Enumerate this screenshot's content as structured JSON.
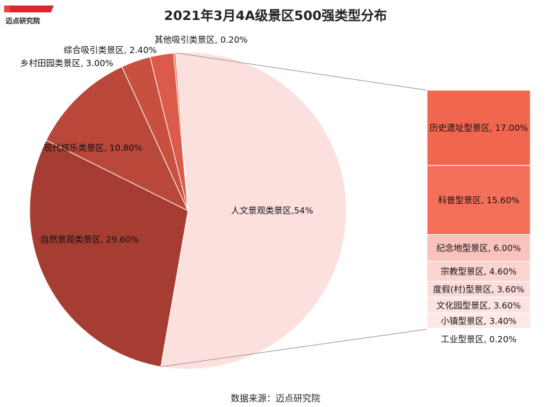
{
  "logo": {
    "text": "迈点研究院"
  },
  "source": "数据来源：迈点研究院",
  "chart_data": {
    "type": "pie",
    "title": "2021年3月4A级景区500强类型分布",
    "slices": [
      {
        "label": "人文景观类景区,54%",
        "value": 54,
        "color": "#fce0de"
      },
      {
        "label": "自然景观类景区, 29.60%",
        "value": 29.6,
        "color": "#a63d32"
      },
      {
        "label": "现代娱乐类景区, 10.80%",
        "value": 10.8,
        "color": "#b9473a"
      },
      {
        "label": "乡村田园类景区, 3.00%",
        "value": 3.0,
        "color": "#c8503f"
      },
      {
        "label": "综合吸引类景区, 2.40%",
        "value": 2.4,
        "color": "#dc5a49"
      },
      {
        "label": "其他吸引类景区, 0.20%",
        "value": 0.2,
        "color": "#ee6a57"
      }
    ],
    "breakdown": {
      "of": "人文景观类景区,54%",
      "items": [
        {
          "label": "历史遗址型景区, 17.00%",
          "value": 17.0,
          "color": "#f0664f"
        },
        {
          "label": "科普型景区, 15.60%",
          "value": 15.6,
          "color": "#f4705a"
        },
        {
          "label": "纪念地型景区, 6.00%",
          "value": 6.0,
          "color": "#f9c2bc"
        },
        {
          "label": "宗教型景区, 4.60%",
          "value": 4.6,
          "color": "#fbd3cf"
        },
        {
          "label": "度假(村)型景区, 3.60%",
          "value": 3.6,
          "color": "#fcdcd8"
        },
        {
          "label": "文化园型景区, 3.60%",
          "value": 3.6,
          "color": "#fde3e0"
        },
        {
          "label": "小镇型景区, 3.40%",
          "value": 3.4,
          "color": "#fde8e5"
        },
        {
          "label": "工业型景区, 0.20%",
          "value": 0.2,
          "color": "#fef0ee"
        }
      ]
    }
  }
}
